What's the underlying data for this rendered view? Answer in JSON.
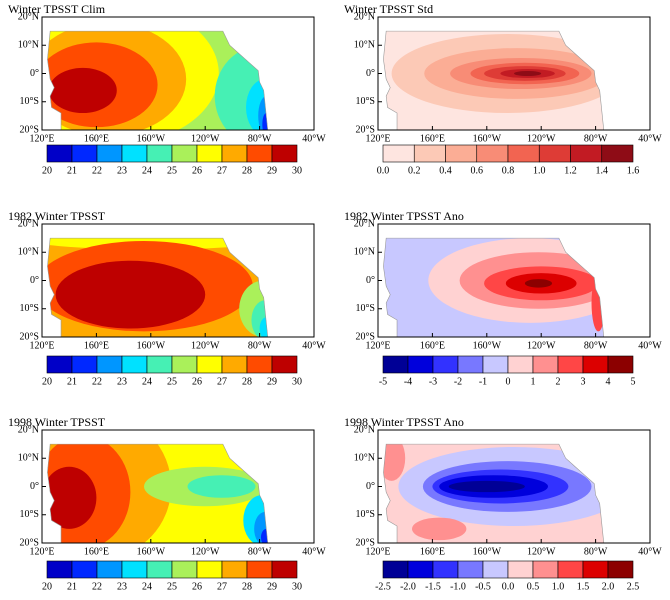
{
  "map_axes": {
    "xticks": [
      "120°E",
      "160°E",
      "160°W",
      "120°W",
      "80°W",
      "40°W"
    ],
    "yticks": [
      "20°N",
      "10°N",
      "0°",
      "10°S",
      "20°S"
    ]
  },
  "panels": [
    {
      "title": "Winter TPSST Clim",
      "colorbar": {
        "ticks": [
          20,
          21,
          22,
          23,
          24,
          25,
          26,
          27,
          28,
          29,
          30
        ],
        "colors": [
          "#0000c8",
          "#0028ff",
          "#0096ff",
          "#00e1ff",
          "#46f0b4",
          "#aaf05a",
          "#ffff00",
          "#ffaa00",
          "#ff4b00",
          "#be0000"
        ]
      }
    },
    {
      "title": "Winter TPSST Std",
      "colorbar": {
        "ticks": [
          {
            "value": 0,
            "label": "0.0"
          },
          0.2,
          0.4,
          0.6,
          0.8,
          {
            "value": 1,
            "label": "1.0"
          },
          1.2,
          1.4,
          1.6
        ],
        "colors": [
          "#fee5e0",
          "#fcc9b6",
          "#fbad95",
          "#f88c76",
          "#f26451",
          "#de3c36",
          "#c21b23",
          "#8e0c16"
        ]
      }
    },
    {
      "title": "1982 Winter TPSST",
      "colorbar": {
        "ticks": [
          20,
          21,
          22,
          23,
          24,
          25,
          26,
          27,
          28,
          29,
          30
        ],
        "colors": [
          "#0000c8",
          "#0028ff",
          "#0096ff",
          "#00e1ff",
          "#46f0b4",
          "#aaf05a",
          "#ffff00",
          "#ffaa00",
          "#ff4b00",
          "#be0000"
        ]
      }
    },
    {
      "title": "1982 Winter TPSST Ano",
      "colorbar": {
        "ticks": [
          -5,
          -4,
          -3,
          -2,
          -1,
          0,
          1,
          2,
          3,
          4,
          5
        ],
        "colors": [
          "#000096",
          "#0000dc",
          "#3232ff",
          "#7878ff",
          "#c8c8ff",
          "#ffd2d2",
          "#ff9090",
          "#ff4646",
          "#dc0000",
          "#8c0000"
        ]
      }
    },
    {
      "title": "1998 Winter TPSST",
      "colorbar": {
        "ticks": [
          20,
          21,
          22,
          23,
          24,
          25,
          26,
          27,
          28,
          29,
          30
        ],
        "colors": [
          "#0000c8",
          "#0028ff",
          "#0096ff",
          "#00e1ff",
          "#46f0b4",
          "#aaf05a",
          "#ffff00",
          "#ffaa00",
          "#ff4b00",
          "#be0000"
        ]
      }
    },
    {
      "title": "1998 Winter TPSST Ano",
      "colorbar": {
        "ticks": [
          -2.5,
          {
            "value": -2,
            "label": "-2.0"
          },
          -1.5,
          {
            "value": -1,
            "label": "-1.0"
          },
          -0.5,
          {
            "value": 0,
            "label": "0.0"
          },
          0.5,
          {
            "value": 1,
            "label": "1.0"
          },
          1.5,
          {
            "value": 2,
            "label": "2.0"
          },
          2.5
        ],
        "colors": [
          "#000096",
          "#0000dc",
          "#3232ff",
          "#7878ff",
          "#c8c8ff",
          "#ffd2d2",
          "#ff9090",
          "#ff4646",
          "#dc0000",
          "#8c0000"
        ]
      }
    }
  ]
}
